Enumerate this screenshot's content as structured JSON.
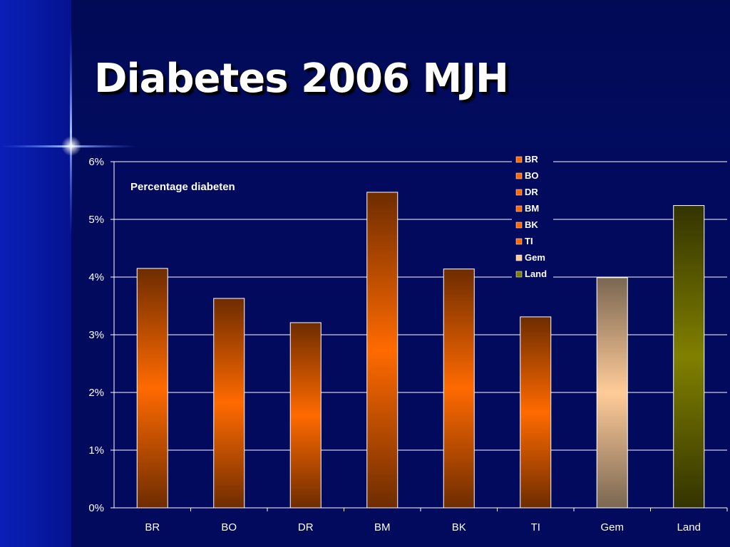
{
  "slide": {
    "title": "Diabetes 2006 MJH"
  },
  "chart_data": {
    "type": "bar",
    "annotation": "Percentage diabeten",
    "categories": [
      "BR",
      "BO",
      "DR",
      "BM",
      "BK",
      "TI",
      "Gem",
      "Land"
    ],
    "values": [
      4.15,
      3.63,
      3.21,
      5.47,
      4.14,
      3.31,
      3.99,
      5.24
    ],
    "value_unit": "%",
    "ylim": [
      0,
      6
    ],
    "yticks": [
      0,
      1,
      2,
      3,
      4,
      5,
      6
    ],
    "ytick_labels": [
      "0%",
      "1%",
      "2%",
      "3%",
      "4%",
      "5%",
      "6%"
    ],
    "xlabel": "",
    "ylabel": "",
    "grid": true,
    "legend": {
      "placement": "top-right",
      "entries": [
        "BR",
        "BO",
        "DR",
        "BM",
        "BK",
        "TI",
        "Gem",
        "Land"
      ]
    },
    "colors": {
      "BR": "#ff6a00",
      "BO": "#ff6a00",
      "DR": "#ff6a00",
      "BM": "#ff6a00",
      "BK": "#ff6a00",
      "TI": "#ff6a00",
      "Gem": "#ffcc99",
      "Land": "#808000"
    },
    "dark_colors": {
      "BR": "#6e2c00",
      "BO": "#6e2c00",
      "DR": "#6e2c00",
      "BM": "#6e2c00",
      "BK": "#6e2c00",
      "TI": "#6e2c00",
      "Gem": "#7a6652",
      "Land": "#333300"
    }
  }
}
